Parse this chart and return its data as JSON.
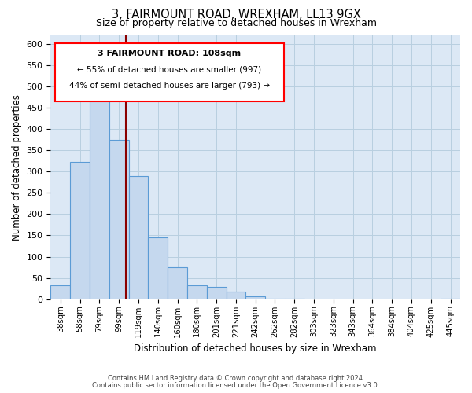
{
  "title": "3, FAIRMOUNT ROAD, WREXHAM, LL13 9GX",
  "subtitle": "Size of property relative to detached houses in Wrexham",
  "xlabel": "Distribution of detached houses by size in Wrexham",
  "ylabel": "Number of detached properties",
  "bar_labels": [
    "38sqm",
    "58sqm",
    "79sqm",
    "99sqm",
    "119sqm",
    "140sqm",
    "160sqm",
    "180sqm",
    "201sqm",
    "221sqm",
    "242sqm",
    "262sqm",
    "282sqm",
    "303sqm",
    "323sqm",
    "343sqm",
    "364sqm",
    "384sqm",
    "404sqm",
    "425sqm",
    "445sqm"
  ],
  "bar_values": [
    32,
    322,
    483,
    375,
    290,
    145,
    75,
    32,
    29,
    17,
    7,
    2,
    1,
    0,
    0,
    0,
    0,
    0,
    0,
    0,
    2
  ],
  "bar_color": "#c5d8ee",
  "bar_edge_color": "#5b9bd5",
  "annotation_text_line1": "3 FAIRMOUNT ROAD: 108sqm",
  "annotation_text_line2": "← 55% of detached houses are smaller (997)",
  "annotation_text_line3": "44% of semi-detached houses are larger (793) →",
  "red_line_x": 3.35,
  "ylim": [
    0,
    620
  ],
  "yticks": [
    0,
    50,
    100,
    150,
    200,
    250,
    300,
    350,
    400,
    450,
    500,
    550,
    600
  ],
  "footer_line1": "Contains HM Land Registry data © Crown copyright and database right 2024.",
  "footer_line2": "Contains public sector information licensed under the Open Government Licence v3.0.",
  "background_color": "#ffffff",
  "plot_bg_color": "#dce8f5",
  "grid_color": "#b8cfe0"
}
